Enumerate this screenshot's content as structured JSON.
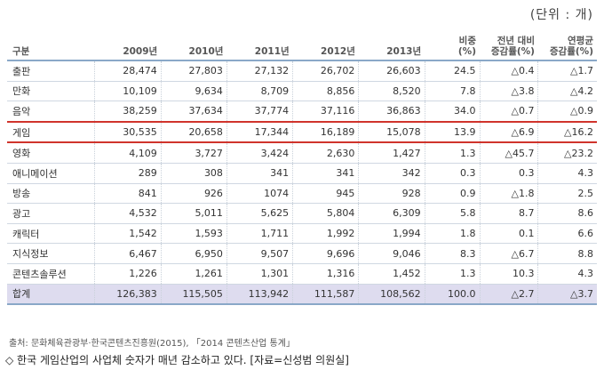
{
  "unit_label": "(단위 : 개)",
  "headers": [
    "구분",
    "2009년",
    "2010년",
    "2011년",
    "2012년",
    "2013년",
    "비중\n(%)",
    "전년 대비\n증감률(%)",
    "연평균\n증감률(%)"
  ],
  "rows": [
    {
      "name": "출판",
      "cells": [
        "28,474",
        "27,803",
        "27,132",
        "26,702",
        "26,603",
        "24.5",
        "△0.4",
        "△1.7"
      ]
    },
    {
      "name": "만화",
      "cells": [
        "10,109",
        "9,634",
        "8,709",
        "8,856",
        "8,520",
        "7.8",
        "△3.8",
        "△4.2"
      ]
    },
    {
      "name": "음악",
      "cells": [
        "38,259",
        "37,634",
        "37,774",
        "37,116",
        "36,863",
        "34.0",
        "△0.7",
        "△0.9"
      ]
    },
    {
      "name": "게임",
      "cells": [
        "30,535",
        "20,658",
        "17,344",
        "16,189",
        "15,078",
        "13.9",
        "△6.9",
        "△16.2"
      ],
      "highlight": true
    },
    {
      "name": "영화",
      "cells": [
        "4,109",
        "3,727",
        "3,424",
        "2,630",
        "1,427",
        "1.3",
        "△45.7",
        "△23.2"
      ]
    },
    {
      "name": "애니메이션",
      "cells": [
        "289",
        "308",
        "341",
        "341",
        "342",
        "0.3",
        "0.3",
        "4.3"
      ]
    },
    {
      "name": "방송",
      "cells": [
        "841",
        "926",
        "1074",
        "945",
        "928",
        "0.9",
        "△1.8",
        "2.5"
      ]
    },
    {
      "name": "광고",
      "cells": [
        "4,532",
        "5,011",
        "5,625",
        "5,804",
        "6,309",
        "5.8",
        "8.7",
        "8.6"
      ]
    },
    {
      "name": "캐릭터",
      "cells": [
        "1,542",
        "1,593",
        "1,711",
        "1,992",
        "1,994",
        "1.8",
        "0.1",
        "6.6"
      ]
    },
    {
      "name": "지식정보",
      "cells": [
        "6,467",
        "6,950",
        "9,507",
        "9,696",
        "9,046",
        "8.3",
        "△6.7",
        "8.8"
      ]
    },
    {
      "name": "콘텐츠솔루션",
      "cells": [
        "1,226",
        "1,261",
        "1,301",
        "1,316",
        "1,452",
        "1.3",
        "10.3",
        "4.3"
      ]
    },
    {
      "name": "합계",
      "cells": [
        "126,383",
        "115,505",
        "113,942",
        "111,587",
        "108,562",
        "100.0",
        "△2.7",
        "△3.7"
      ],
      "total": true
    }
  ],
  "source": "출처: 문화체육관광부·한국콘텐츠진흥원(2015), 「2014 콘텐츠산업 통계」",
  "caption": "◇ 한국 게임산업의 사업체 숫자가 매년 감소하고 있다. [자료=신성범 의원실]"
}
